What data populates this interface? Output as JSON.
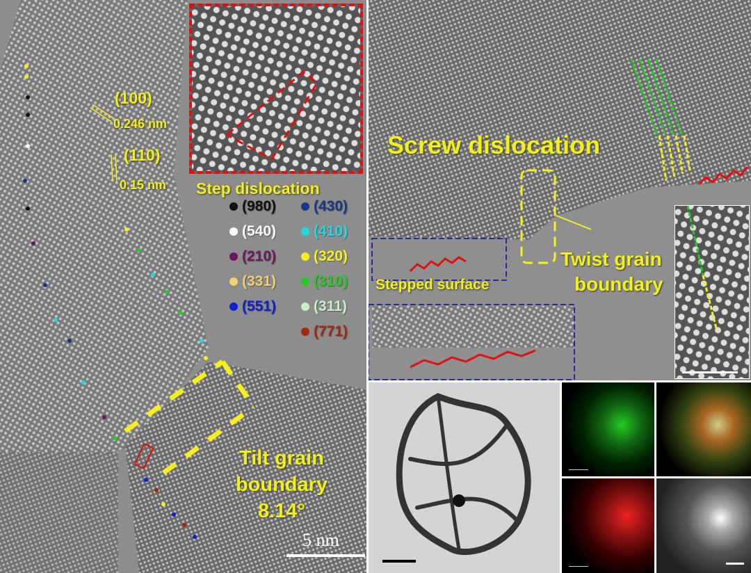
{
  "left_panel": {
    "planes": [
      {
        "index": "(100)",
        "spacing": "0.246 nm"
      },
      {
        "index": "(110)",
        "spacing": "0.15 nm"
      }
    ],
    "inset_title": "Step dislocation",
    "legend": [
      {
        "label": "(980)",
        "color": "#111111"
      },
      {
        "label": "(430)",
        "color": "#1a3a80"
      },
      {
        "label": "(540)",
        "color": "#ffffff"
      },
      {
        "label": "(410)",
        "color": "#22d8e0"
      },
      {
        "label": "(210)",
        "color": "#6a1a5e"
      },
      {
        "label": "(320)",
        "color": "#f4f020"
      },
      {
        "label": "(331)",
        "color": "#f0d070"
      },
      {
        "label": "(310)",
        "color": "#22cc22"
      },
      {
        "label": "(551)",
        "color": "#1020d0"
      },
      {
        "label": "(311)",
        "color": "#c8f0c8"
      },
      {
        "label": "(771)",
        "color": "#a02a10"
      }
    ],
    "tilt_label": [
      "Tilt grain",
      "boundary",
      "8.14°"
    ],
    "scale_label": "5 nm"
  },
  "right_panel": {
    "screw_label": "Screw dislocation",
    "twist_label": [
      "Twist grain",
      "boundary"
    ],
    "stepped_label": "Stepped surface"
  },
  "colors": {
    "annotation": "#f2f01c",
    "inset_border": "#e01010",
    "surface_box": "#2a2aa0"
  }
}
